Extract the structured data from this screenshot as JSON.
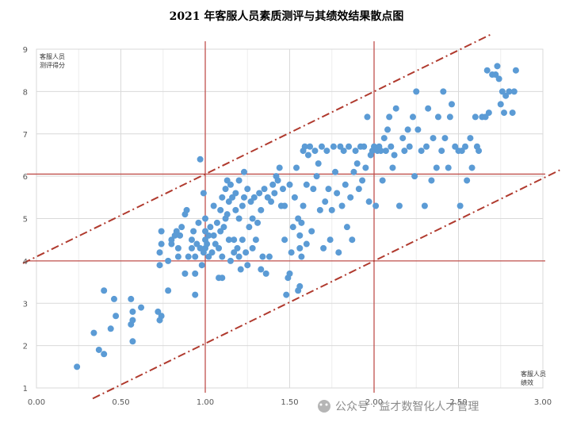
{
  "chart_data": {
    "type": "scatter",
    "title": "2021 年客服人员素质测评与其绩效结果散点图",
    "ylabel_line1": "客服人员",
    "ylabel_line2": "测评得分",
    "xlabel_line1": "客服人员",
    "xlabel_line2": "绩效",
    "xlim": [
      0,
      3
    ],
    "ylim": [
      1,
      9
    ],
    "x_ticks": [
      "0.00",
      "0.50",
      "1.00",
      "1.50",
      "2.00",
      "2.50",
      "3.00"
    ],
    "y_ticks": [
      "1",
      "2",
      "3",
      "4",
      "5",
      "6",
      "7",
      "8",
      "9"
    ],
    "point_color": "#5b9bd5",
    "line_color": "#c0504d",
    "band_color": "#b03a2e",
    "grid": true,
    "reference_lines": {
      "x": [
        1.0,
        2.0
      ],
      "y": [
        4.0,
        6.05
      ]
    },
    "band_lines": [
      {
        "slope": 1.95,
        "intercept": 4.1
      },
      {
        "slope": 1.95,
        "intercept": 0.1
      }
    ],
    "points": [
      [
        0.24,
        1.5
      ],
      [
        0.34,
        2.3
      ],
      [
        0.37,
        1.9
      ],
      [
        0.4,
        1.8
      ],
      [
        0.4,
        3.3
      ],
      [
        0.44,
        2.4
      ],
      [
        0.46,
        3.1
      ],
      [
        0.47,
        2.7
      ],
      [
        0.56,
        2.5
      ],
      [
        0.57,
        2.6
      ],
      [
        0.57,
        2.1
      ],
      [
        0.57,
        2.8
      ],
      [
        0.62,
        2.9
      ],
      [
        0.56,
        3.1
      ],
      [
        0.72,
        2.8
      ],
      [
        0.73,
        2.6
      ],
      [
        0.74,
        2.7
      ],
      [
        0.78,
        3.3
      ],
      [
        0.73,
        3.9
      ],
      [
        0.78,
        4.0
      ],
      [
        0.73,
        4.2
      ],
      [
        0.74,
        4.4
      ],
      [
        0.74,
        4.7
      ],
      [
        0.8,
        4.5
      ],
      [
        0.8,
        4.4
      ],
      [
        0.82,
        4.6
      ],
      [
        0.83,
        4.7
      ],
      [
        0.84,
        4.1
      ],
      [
        0.84,
        4.3
      ],
      [
        0.85,
        4.6
      ],
      [
        0.86,
        4.8
      ],
      [
        0.88,
        3.7
      ],
      [
        0.88,
        5.1
      ],
      [
        0.89,
        5.2
      ],
      [
        0.9,
        4.1
      ],
      [
        0.92,
        4.5
      ],
      [
        0.92,
        4.3
      ],
      [
        0.93,
        4.7
      ],
      [
        0.94,
        3.2
      ],
      [
        0.94,
        3.7
      ],
      [
        0.94,
        4.1
      ],
      [
        0.95,
        4.4
      ],
      [
        0.96,
        4.9
      ],
      [
        0.97,
        4.3
      ],
      [
        0.98,
        3.9
      ],
      [
        0.99,
        4.2
      ],
      [
        1.0,
        4.3
      ],
      [
        1.0,
        4.5
      ],
      [
        1.0,
        4.7
      ],
      [
        1.0,
        5.0
      ],
      [
        0.99,
        5.6
      ],
      [
        0.97,
        6.4
      ],
      [
        1.01,
        4.4
      ],
      [
        1.02,
        4.6
      ],
      [
        1.02,
        4.1
      ],
      [
        1.03,
        4.8
      ],
      [
        1.04,
        4.2
      ],
      [
        1.05,
        4.6
      ],
      [
        1.05,
        5.3
      ],
      [
        1.06,
        4.4
      ],
      [
        1.07,
        4.9
      ],
      [
        1.08,
        3.6
      ],
      [
        1.08,
        4.3
      ],
      [
        1.09,
        4.7
      ],
      [
        1.09,
        5.2
      ],
      [
        1.1,
        3.6
      ],
      [
        1.1,
        4.1
      ],
      [
        1.1,
        5.5
      ],
      [
        1.11,
        4.8
      ],
      [
        1.12,
        5.0
      ],
      [
        1.12,
        5.7
      ],
      [
        1.13,
        5.9
      ],
      [
        1.13,
        5.1
      ],
      [
        1.14,
        4.5
      ],
      [
        1.14,
        5.4
      ],
      [
        1.15,
        5.8
      ],
      [
        1.15,
        4.0
      ],
      [
        1.16,
        5.5
      ],
      [
        1.17,
        4.2
      ],
      [
        1.17,
        4.5
      ],
      [
        1.18,
        5.2
      ],
      [
        1.18,
        5.6
      ],
      [
        1.19,
        4.3
      ],
      [
        1.2,
        4.1
      ],
      [
        1.2,
        5.0
      ],
      [
        1.2,
        5.9
      ],
      [
        1.21,
        3.8
      ],
      [
        1.22,
        4.5
      ],
      [
        1.22,
        5.3
      ],
      [
        1.23,
        5.5
      ],
      [
        1.23,
        6.1
      ],
      [
        1.24,
        4.2
      ],
      [
        1.25,
        3.9
      ],
      [
        1.25,
        5.7
      ],
      [
        1.26,
        4.8
      ],
      [
        1.27,
        5.4
      ],
      [
        1.28,
        4.3
      ],
      [
        1.28,
        5.0
      ],
      [
        1.29,
        5.5
      ],
      [
        1.3,
        4.5
      ],
      [
        1.31,
        4.9
      ],
      [
        1.32,
        5.6
      ],
      [
        1.33,
        3.8
      ],
      [
        1.33,
        5.2
      ],
      [
        1.34,
        4.1
      ],
      [
        1.35,
        5.7
      ],
      [
        1.36,
        3.7
      ],
      [
        1.37,
        5.5
      ],
      [
        1.38,
        4.1
      ],
      [
        1.39,
        5.4
      ],
      [
        1.4,
        5.8
      ],
      [
        1.41,
        5.6
      ],
      [
        1.42,
        6.0
      ],
      [
        1.43,
        5.9
      ],
      [
        1.44,
        6.2
      ],
      [
        1.45,
        5.3
      ],
      [
        1.46,
        5.7
      ],
      [
        1.47,
        5.3
      ],
      [
        1.47,
        4.5
      ],
      [
        1.48,
        3.2
      ],
      [
        1.49,
        3.6
      ],
      [
        1.5,
        3.7
      ],
      [
        1.5,
        5.8
      ],
      [
        1.51,
        4.2
      ],
      [
        1.52,
        4.8
      ],
      [
        1.53,
        5.5
      ],
      [
        1.54,
        6.2
      ],
      [
        1.55,
        3.3
      ],
      [
        1.55,
        5.0
      ],
      [
        1.56,
        3.4
      ],
      [
        1.56,
        4.3
      ],
      [
        1.56,
        4.6
      ],
      [
        1.57,
        4.1
      ],
      [
        1.57,
        4.9
      ],
      [
        1.58,
        5.3
      ],
      [
        1.58,
        6.6
      ],
      [
        1.59,
        6.7
      ],
      [
        1.6,
        4.4
      ],
      [
        1.6,
        5.8
      ],
      [
        1.61,
        6.5
      ],
      [
        1.62,
        6.7
      ],
      [
        1.63,
        4.7
      ],
      [
        1.64,
        5.7
      ],
      [
        1.65,
        6.6
      ],
      [
        1.66,
        6.0
      ],
      [
        1.67,
        6.3
      ],
      [
        1.68,
        5.2
      ],
      [
        1.69,
        6.7
      ],
      [
        1.7,
        4.3
      ],
      [
        1.71,
        5.4
      ],
      [
        1.72,
        6.6
      ],
      [
        1.73,
        5.7
      ],
      [
        1.74,
        4.5
      ],
      [
        1.75,
        5.2
      ],
      [
        1.76,
        6.7
      ],
      [
        1.77,
        6.1
      ],
      [
        1.78,
        5.6
      ],
      [
        1.79,
        4.2
      ],
      [
        1.8,
        6.7
      ],
      [
        1.81,
        5.3
      ],
      [
        1.82,
        6.6
      ],
      [
        1.83,
        5.8
      ],
      [
        1.84,
        4.8
      ],
      [
        1.85,
        6.7
      ],
      [
        1.86,
        5.5
      ],
      [
        1.87,
        4.5
      ],
      [
        1.88,
        6.1
      ],
      [
        1.89,
        6.6
      ],
      [
        1.9,
        6.3
      ],
      [
        1.91,
        5.7
      ],
      [
        1.92,
        6.7
      ],
      [
        1.93,
        5.9
      ],
      [
        1.94,
        6.7
      ],
      [
        1.95,
        6.2
      ],
      [
        1.96,
        7.4
      ],
      [
        1.97,
        5.4
      ],
      [
        1.98,
        6.5
      ],
      [
        1.99,
        6.6
      ],
      [
        2.0,
        6.7
      ],
      [
        2.01,
        5.3
      ],
      [
        2.02,
        6.6
      ],
      [
        2.03,
        6.7
      ],
      [
        2.04,
        6.6
      ],
      [
        2.05,
        5.9
      ],
      [
        2.06,
        6.9
      ],
      [
        2.07,
        6.6
      ],
      [
        2.08,
        7.1
      ],
      [
        2.09,
        7.4
      ],
      [
        2.1,
        6.7
      ],
      [
        2.11,
        6.2
      ],
      [
        2.12,
        6.5
      ],
      [
        2.13,
        7.6
      ],
      [
        2.15,
        5.3
      ],
      [
        2.17,
        6.9
      ],
      [
        2.18,
        6.6
      ],
      [
        2.2,
        7.1
      ],
      [
        2.21,
        6.7
      ],
      [
        2.23,
        7.4
      ],
      [
        2.24,
        6.0
      ],
      [
        2.25,
        8.0
      ],
      [
        2.26,
        7.1
      ],
      [
        2.28,
        6.6
      ],
      [
        2.3,
        5.3
      ],
      [
        2.31,
        6.7
      ],
      [
        2.32,
        7.6
      ],
      [
        2.34,
        5.9
      ],
      [
        2.35,
        6.9
      ],
      [
        2.37,
        6.2
      ],
      [
        2.38,
        7.4
      ],
      [
        2.4,
        6.6
      ],
      [
        2.41,
        8.0
      ],
      [
        2.42,
        6.9
      ],
      [
        2.44,
        6.2
      ],
      [
        2.45,
        7.4
      ],
      [
        2.46,
        7.7
      ],
      [
        2.48,
        6.7
      ],
      [
        2.5,
        6.6
      ],
      [
        2.51,
        5.3
      ],
      [
        2.52,
        6.6
      ],
      [
        2.54,
        6.7
      ],
      [
        2.55,
        5.9
      ],
      [
        2.57,
        6.9
      ],
      [
        2.58,
        6.2
      ],
      [
        2.6,
        7.4
      ],
      [
        2.61,
        6.7
      ],
      [
        2.62,
        6.6
      ],
      [
        2.64,
        7.4
      ],
      [
        2.66,
        7.4
      ],
      [
        2.67,
        8.5
      ],
      [
        2.68,
        7.5
      ],
      [
        2.7,
        8.4
      ],
      [
        2.72,
        8.4
      ],
      [
        2.73,
        8.6
      ],
      [
        2.74,
        8.3
      ],
      [
        2.75,
        7.7
      ],
      [
        2.76,
        8.0
      ],
      [
        2.77,
        7.5
      ],
      [
        2.78,
        7.9
      ],
      [
        2.8,
        8.0
      ],
      [
        2.82,
        7.5
      ],
      [
        2.83,
        8.0
      ],
      [
        2.84,
        8.5
      ]
    ]
  },
  "watermark": "公众号 · 益才数智化人才管理"
}
